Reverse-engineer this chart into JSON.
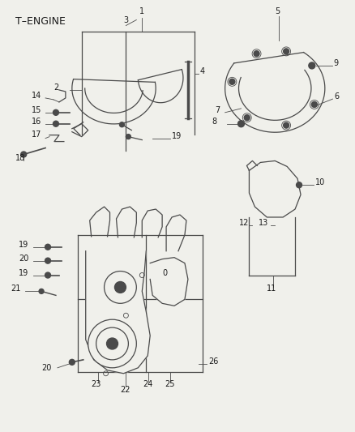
{
  "title": "T–ENGINE",
  "bg_color": "#f0f0eb",
  "line_color": "#4a4a4a",
  "text_color": "#1a1a1a",
  "figsize": [
    4.38,
    5.33
  ],
  "dpi": 100,
  "lw": 0.9
}
